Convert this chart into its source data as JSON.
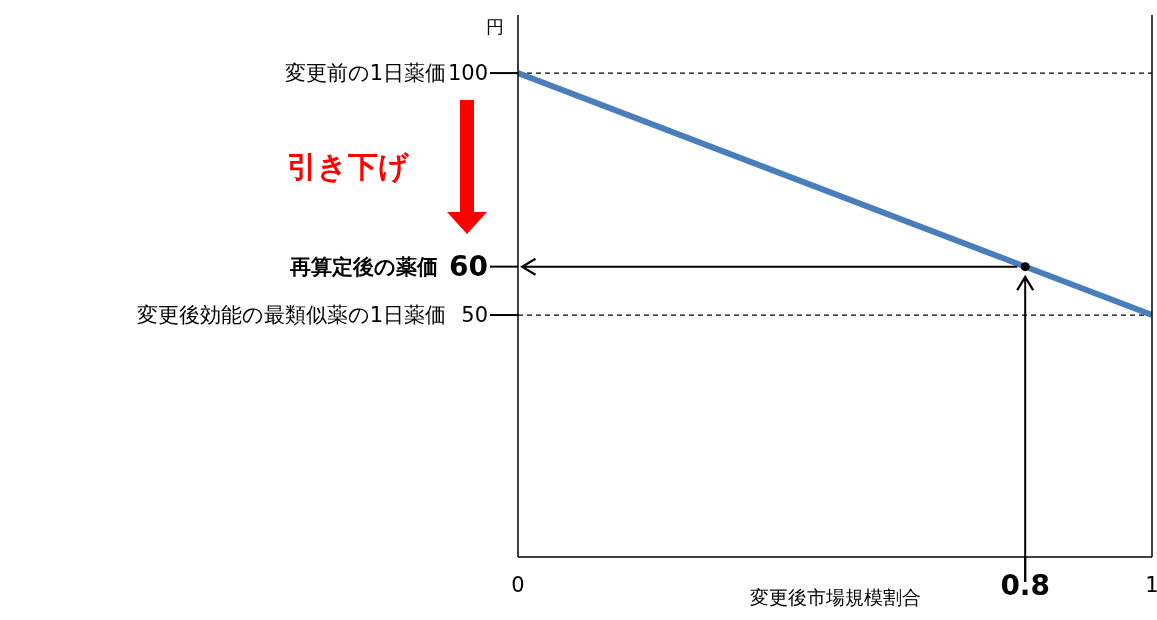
{
  "chart_data": {
    "type": "line",
    "ylabel": "円",
    "xlabel": "変更後市場規模割合",
    "annotations": [
      "引き下げ",
      "変更前の1日薬価",
      "再算定後の薬価",
      "変更後効能の最類似薬の1日薬価"
    ],
    "series": [
      {
        "color": "#4a7ebb",
        "x": [
          0,
          1
        ],
        "values": [
          100,
          50
        ]
      },
      {
        "type": "scatter",
        "color": "#000000",
        "x": [
          0.8
        ],
        "values": [
          60
        ],
        "marker": "circle"
      }
    ],
    "xlim": [
      0,
      1
    ],
    "xticks": [
      0,
      {
        "value": 0.8,
        "label": "0.8"
      },
      1
    ],
    "ylim": [
      0,
      112
    ],
    "yticks": [
      100,
      60,
      50
    ],
    "ref_lines": [
      {
        "axis": "y",
        "value": 100,
        "line_style": "dashed",
        "color": "#000000"
      },
      {
        "axis": "y",
        "value": 50,
        "line_style": "dashed",
        "color": "#000000"
      }
    ],
    "grid": false,
    "legend": false
  }
}
